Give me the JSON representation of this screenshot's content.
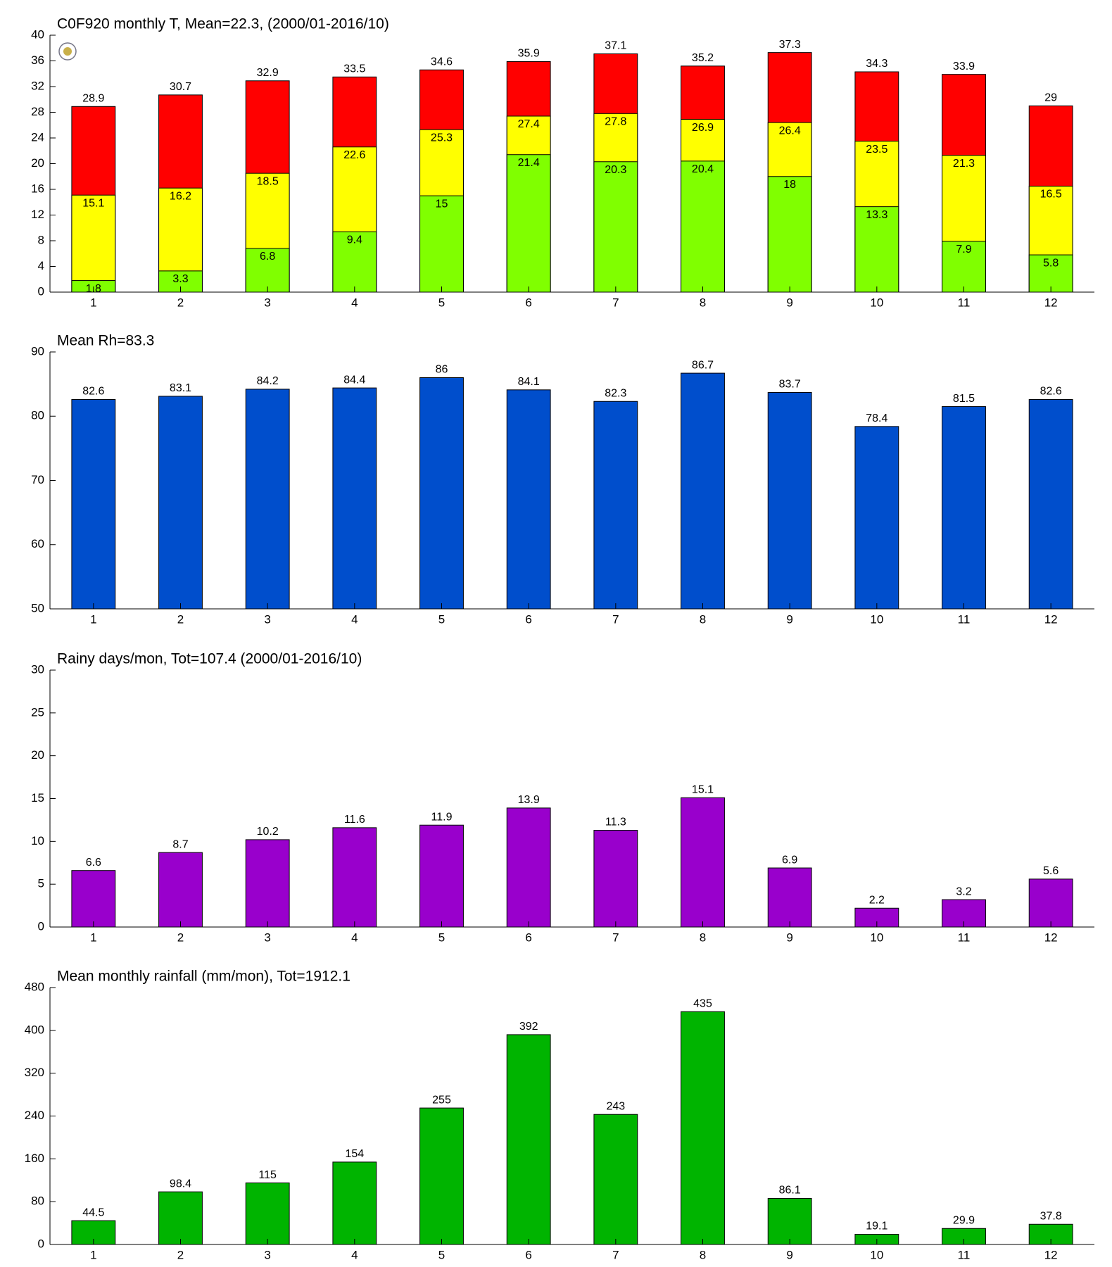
{
  "chart_data": [
    {
      "type": "bar",
      "title": "C0F920 monthly T, Mean=22.3, (2000/01-2016/10)",
      "categories": [
        "1",
        "2",
        "3",
        "4",
        "5",
        "6",
        "7",
        "8",
        "9",
        "10",
        "11",
        "12"
      ],
      "series": [
        {
          "color": "#ff0000",
          "values": [
            28.9,
            30.7,
            32.9,
            33.5,
            34.6,
            35.9,
            37.1,
            35.2,
            37.3,
            34.3,
            33.9,
            29
          ]
        },
        {
          "color": "#ffff00",
          "values": [
            15.1,
            16.2,
            18.5,
            22.6,
            25.3,
            27.4,
            27.8,
            26.9,
            26.4,
            23.5,
            21.3,
            16.5
          ]
        },
        {
          "color": "#80ff00",
          "values": [
            1.8,
            3.3,
            6.8,
            9.4,
            15,
            21.4,
            20.3,
            20.4,
            18,
            13.3,
            7.9,
            5.8
          ]
        }
      ],
      "ylim": [
        0,
        40
      ],
      "yticks": [
        0,
        4,
        8,
        12,
        16,
        20,
        24,
        28,
        32,
        36,
        40
      ]
    },
    {
      "type": "bar",
      "title": "Mean Rh=83.3",
      "categories": [
        "1",
        "2",
        "3",
        "4",
        "5",
        "6",
        "7",
        "8",
        "9",
        "10",
        "11",
        "12"
      ],
      "series": [
        {
          "color": "#004ecc",
          "values": [
            82.6,
            83.1,
            84.2,
            84.4,
            86,
            84.1,
            82.3,
            86.7,
            83.7,
            78.4,
            81.5,
            82.6
          ]
        }
      ],
      "ylim": [
        50,
        90
      ],
      "yticks": [
        50,
        60,
        70,
        80,
        90
      ]
    },
    {
      "type": "bar",
      "title": "Rainy days/mon, Tot=107.4 (2000/01-2016/10)",
      "categories": [
        "1",
        "2",
        "3",
        "4",
        "5",
        "6",
        "7",
        "8",
        "9",
        "10",
        "11",
        "12"
      ],
      "series": [
        {
          "color": "#9900cc",
          "values": [
            6.6,
            8.7,
            10.2,
            11.6,
            11.9,
            13.9,
            11.3,
            15.1,
            6.9,
            2.2,
            3.2,
            5.6
          ]
        }
      ],
      "ylim": [
        0,
        30
      ],
      "yticks": [
        0,
        5,
        10,
        15,
        20,
        25,
        30
      ]
    },
    {
      "type": "bar",
      "title": "Mean monthly rainfall (mm/mon), Tot=1912.1",
      "categories": [
        "1",
        "2",
        "3",
        "4",
        "5",
        "6",
        "7",
        "8",
        "9",
        "10",
        "11",
        "12"
      ],
      "series": [
        {
          "color": "#00b400",
          "values": [
            44.5,
            98.4,
            115,
            154,
            255,
            392,
            243,
            435,
            86.1,
            19.1,
            29.9,
            37.8
          ]
        }
      ],
      "ylim": [
        0,
        480
      ],
      "yticks": [
        0,
        80,
        160,
        240,
        320,
        400,
        480
      ]
    }
  ]
}
